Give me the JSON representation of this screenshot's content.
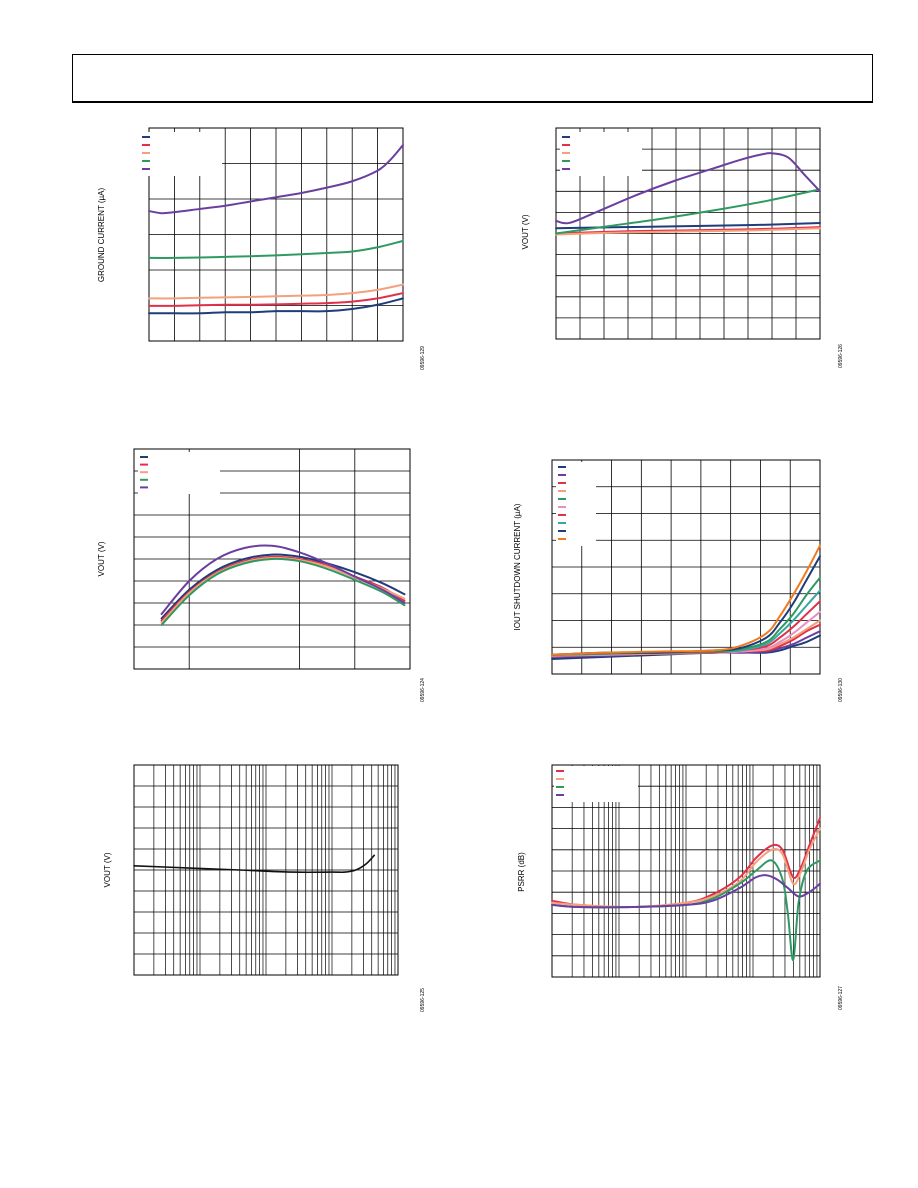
{
  "page": {
    "header_text": ""
  },
  "figures": [
    {
      "id": "fig1",
      "ylabel": "GROUND CURRENT (µA)",
      "code": "09596-129"
    },
    {
      "id": "fig2",
      "ylabel": "VOUT (V)",
      "code": "09596-126"
    },
    {
      "id": "fig3",
      "ylabel": "VOUT (V)",
      "code": "09596-124"
    },
    {
      "id": "fig4",
      "ylabel": "IOUT SHUTDOWN CURRENT (µA)",
      "code": "09596-130"
    },
    {
      "id": "fig5",
      "ylabel": "VOUT (V)",
      "code": "09596-125"
    },
    {
      "id": "fig6",
      "ylabel": "PSRR (dB)",
      "code": "09596-127"
    }
  ],
  "colors": {
    "navy": "#1f3d7a",
    "red": "#e0304a",
    "salmon": "#f4a07c",
    "green": "#2e9a62",
    "purple": "#6b3fa0",
    "orange": "#f07a20",
    "pink": "#e88fc0",
    "teal": "#3aa6a0",
    "black": "#111111",
    "grid": "#000000"
  },
  "chart_data": [
    {
      "id": "fig1",
      "type": "line",
      "ylabel": "GROUND CURRENT (µA)",
      "xlim": [
        0,
        1
      ],
      "ylim": [
        0,
        1
      ],
      "series": [
        {
          "color": "#1f3d7a",
          "x": [
            0,
            0.1,
            0.2,
            0.3,
            0.4,
            0.5,
            0.6,
            0.7,
            0.8,
            0.9,
            1.0
          ],
          "y": [
            0.13,
            0.13,
            0.13,
            0.135,
            0.135,
            0.14,
            0.14,
            0.14,
            0.15,
            0.17,
            0.2
          ]
        },
        {
          "color": "#e0304a",
          "x": [
            0,
            0.1,
            0.2,
            0.3,
            0.4,
            0.5,
            0.6,
            0.7,
            0.8,
            0.9,
            1.0
          ],
          "y": [
            0.165,
            0.165,
            0.168,
            0.17,
            0.17,
            0.172,
            0.175,
            0.178,
            0.185,
            0.2,
            0.225
          ]
        },
        {
          "color": "#f4a07c",
          "x": [
            0,
            0.1,
            0.2,
            0.3,
            0.4,
            0.5,
            0.6,
            0.7,
            0.8,
            0.9,
            1.0
          ],
          "y": [
            0.2,
            0.2,
            0.203,
            0.205,
            0.207,
            0.21,
            0.213,
            0.216,
            0.225,
            0.24,
            0.265
          ]
        },
        {
          "color": "#2e9a62",
          "x": [
            0,
            0.1,
            0.2,
            0.3,
            0.4,
            0.5,
            0.6,
            0.7,
            0.8,
            0.9,
            1.0
          ],
          "y": [
            0.39,
            0.39,
            0.392,
            0.395,
            0.398,
            0.402,
            0.407,
            0.413,
            0.42,
            0.44,
            0.47
          ]
        },
        {
          "color": "#6b3fa0",
          "x": [
            0,
            0.05,
            0.1,
            0.2,
            0.3,
            0.4,
            0.5,
            0.6,
            0.7,
            0.8,
            0.9,
            0.95,
            1.0
          ],
          "y": [
            0.61,
            0.6,
            0.605,
            0.62,
            0.635,
            0.655,
            0.675,
            0.695,
            0.72,
            0.75,
            0.8,
            0.85,
            0.92
          ]
        }
      ]
    },
    {
      "id": "fig2",
      "type": "line",
      "ylabel": "VOUT (V)",
      "xlim": [
        0,
        1
      ],
      "ylim": [
        0,
        1
      ],
      "series": [
        {
          "color": "#1f3d7a",
          "x": [
            0,
            0.25,
            0.5,
            0.75,
            1.0
          ],
          "y": [
            0.525,
            0.53,
            0.535,
            0.54,
            0.55
          ]
        },
        {
          "color": "#e0304a",
          "x": [
            0,
            0.25,
            0.5,
            0.75,
            1.0
          ],
          "y": [
            0.5,
            0.51,
            0.515,
            0.52,
            0.53
          ]
        },
        {
          "color": "#f4a07c",
          "x": [
            0,
            0.25,
            0.5,
            0.75,
            1.0
          ],
          "y": [
            0.495,
            0.505,
            0.51,
            0.515,
            0.525
          ]
        },
        {
          "color": "#2e9a62",
          "x": [
            0,
            0.2,
            0.4,
            0.6,
            0.8,
            1.0
          ],
          "y": [
            0.5,
            0.535,
            0.57,
            0.61,
            0.655,
            0.71
          ]
        },
        {
          "color": "#6b3fa0",
          "x": [
            0,
            0.05,
            0.15,
            0.3,
            0.45,
            0.6,
            0.7,
            0.78,
            0.82,
            0.88,
            0.94,
            1.0
          ],
          "y": [
            0.56,
            0.55,
            0.6,
            0.68,
            0.75,
            0.81,
            0.85,
            0.875,
            0.88,
            0.86,
            0.78,
            0.7
          ]
        }
      ]
    },
    {
      "id": "fig3",
      "type": "line",
      "ylabel": "VOUT (V)",
      "xlim": [
        0,
        1
      ],
      "ylim": [
        0,
        1
      ],
      "series": [
        {
          "color": "#1f3d7a",
          "x": [
            0.1,
            0.2,
            0.3,
            0.4,
            0.5,
            0.6,
            0.7,
            0.8,
            0.9,
            0.98
          ],
          "y": [
            0.23,
            0.36,
            0.45,
            0.5,
            0.52,
            0.51,
            0.48,
            0.44,
            0.39,
            0.34
          ]
        },
        {
          "color": "#e0304a",
          "x": [
            0.1,
            0.2,
            0.3,
            0.4,
            0.5,
            0.6,
            0.7,
            0.8,
            0.9,
            0.98
          ],
          "y": [
            0.22,
            0.35,
            0.44,
            0.49,
            0.51,
            0.5,
            0.47,
            0.42,
            0.37,
            0.31
          ]
        },
        {
          "color": "#f4a07c",
          "x": [
            0.1,
            0.2,
            0.3,
            0.4,
            0.5,
            0.6,
            0.7,
            0.8,
            0.9,
            0.98
          ],
          "y": [
            0.21,
            0.345,
            0.435,
            0.485,
            0.505,
            0.495,
            0.465,
            0.415,
            0.365,
            0.32
          ]
        },
        {
          "color": "#2e9a62",
          "x": [
            0.1,
            0.2,
            0.3,
            0.4,
            0.5,
            0.6,
            0.7,
            0.8,
            0.9,
            0.98
          ],
          "y": [
            0.2,
            0.335,
            0.43,
            0.48,
            0.5,
            0.49,
            0.455,
            0.405,
            0.35,
            0.29
          ]
        },
        {
          "color": "#6b3fa0",
          "x": [
            0.1,
            0.2,
            0.3,
            0.4,
            0.5,
            0.6,
            0.7,
            0.8,
            0.9,
            0.98
          ],
          "y": [
            0.25,
            0.4,
            0.5,
            0.55,
            0.56,
            0.53,
            0.48,
            0.42,
            0.36,
            0.3
          ]
        }
      ]
    },
    {
      "id": "fig4",
      "type": "line",
      "ylabel": "IOUT SHUTDOWN CURRENT (µA)",
      "xlim": [
        0,
        1
      ],
      "ylim": [
        0,
        1
      ],
      "series": [
        {
          "color": "#1f3d7a",
          "x": [
            0,
            0.2,
            0.4,
            0.6,
            0.7,
            0.8,
            0.85,
            0.9,
            0.95,
            1.0
          ],
          "y": [
            0.07,
            0.08,
            0.09,
            0.1,
            0.1,
            0.1,
            0.11,
            0.13,
            0.15,
            0.18
          ]
        },
        {
          "color": "#6b3fa0",
          "x": [
            0,
            0.2,
            0.4,
            0.6,
            0.7,
            0.8,
            0.85,
            0.9,
            0.95,
            1.0
          ],
          "y": [
            0.08,
            0.085,
            0.095,
            0.1,
            0.1,
            0.105,
            0.12,
            0.14,
            0.17,
            0.2
          ]
        },
        {
          "color": "#e0304a",
          "x": [
            0,
            0.2,
            0.4,
            0.6,
            0.7,
            0.8,
            0.85,
            0.9,
            0.95,
            1.0
          ],
          "y": [
            0.085,
            0.09,
            0.095,
            0.1,
            0.105,
            0.11,
            0.13,
            0.16,
            0.2,
            0.23
          ]
        },
        {
          "color": "#f4a07c",
          "x": [
            0,
            0.2,
            0.4,
            0.6,
            0.7,
            0.8,
            0.85,
            0.9,
            0.95,
            1.0
          ],
          "y": [
            0.085,
            0.09,
            0.095,
            0.1,
            0.105,
            0.115,
            0.14,
            0.17,
            0.21,
            0.25
          ]
        },
        {
          "color": "#e88fc0",
          "x": [
            0,
            0.2,
            0.4,
            0.6,
            0.7,
            0.8,
            0.85,
            0.9,
            0.95,
            1.0
          ],
          "y": [
            0.09,
            0.09,
            0.1,
            0.1,
            0.105,
            0.12,
            0.15,
            0.19,
            0.24,
            0.29
          ]
        },
        {
          "color": "#e0304a",
          "x": [
            0,
            0.2,
            0.4,
            0.6,
            0.7,
            0.8,
            0.85,
            0.9,
            0.95,
            1.0
          ],
          "y": [
            0.09,
            0.095,
            0.1,
            0.1,
            0.11,
            0.13,
            0.17,
            0.22,
            0.28,
            0.34
          ]
        },
        {
          "color": "#3aa6a0",
          "x": [
            0,
            0.2,
            0.4,
            0.6,
            0.7,
            0.8,
            0.85,
            0.9,
            0.95,
            1.0
          ],
          "y": [
            0.09,
            0.095,
            0.1,
            0.105,
            0.11,
            0.14,
            0.19,
            0.25,
            0.32,
            0.39
          ]
        },
        {
          "color": "#2e9a62",
          "x": [
            0,
            0.2,
            0.4,
            0.6,
            0.7,
            0.8,
            0.85,
            0.9,
            0.95,
            1.0
          ],
          "y": [
            0.09,
            0.095,
            0.1,
            0.105,
            0.115,
            0.15,
            0.21,
            0.28,
            0.37,
            0.45
          ]
        },
        {
          "color": "#1f3d7a",
          "x": [
            0,
            0.2,
            0.4,
            0.6,
            0.7,
            0.8,
            0.85,
            0.9,
            0.95,
            1.0
          ],
          "y": [
            0.09,
            0.1,
            0.1,
            0.11,
            0.12,
            0.17,
            0.24,
            0.33,
            0.44,
            0.55
          ]
        },
        {
          "color": "#f07a20",
          "x": [
            0,
            0.2,
            0.4,
            0.6,
            0.7,
            0.8,
            0.85,
            0.9,
            0.95,
            1.0
          ],
          "y": [
            0.09,
            0.1,
            0.105,
            0.11,
            0.13,
            0.19,
            0.27,
            0.37,
            0.48,
            0.6
          ]
        }
      ]
    },
    {
      "id": "fig5",
      "type": "line",
      "ylabel": "VOUT (V)",
      "xlim": [
        0,
        1
      ],
      "ylim": [
        0,
        1
      ],
      "series": [
        {
          "color": "#111111",
          "x": [
            0,
            0.2,
            0.4,
            0.6,
            0.75,
            0.8,
            0.84,
            0.88,
            0.91
          ],
          "y": [
            0.52,
            0.51,
            0.5,
            0.49,
            0.49,
            0.49,
            0.5,
            0.53,
            0.57
          ]
        }
      ]
    },
    {
      "id": "fig6",
      "type": "line",
      "ylabel": "PSRR (dB)",
      "xlim": [
        0,
        1
      ],
      "ylim": [
        0,
        1
      ],
      "series": [
        {
          "color": "#e0304a",
          "x": [
            0,
            0.1,
            0.3,
            0.5,
            0.6,
            0.7,
            0.76,
            0.82,
            0.86,
            0.9,
            0.93,
            0.96,
            1.0
          ],
          "y": [
            0.36,
            0.34,
            0.33,
            0.35,
            0.39,
            0.47,
            0.56,
            0.62,
            0.6,
            0.47,
            0.52,
            0.62,
            0.75
          ]
        },
        {
          "color": "#f4a07c",
          "x": [
            0,
            0.1,
            0.3,
            0.5,
            0.6,
            0.7,
            0.76,
            0.82,
            0.86,
            0.9,
            0.93,
            0.96,
            1.0
          ],
          "y": [
            0.35,
            0.34,
            0.33,
            0.35,
            0.38,
            0.45,
            0.54,
            0.6,
            0.58,
            0.44,
            0.5,
            0.6,
            0.7
          ]
        },
        {
          "color": "#2e9a62",
          "x": [
            0,
            0.1,
            0.3,
            0.5,
            0.6,
            0.7,
            0.76,
            0.82,
            0.86,
            0.88,
            0.9,
            0.92,
            0.95,
            1.0
          ],
          "y": [
            0.34,
            0.33,
            0.33,
            0.34,
            0.37,
            0.44,
            0.5,
            0.55,
            0.46,
            0.3,
            0.08,
            0.35,
            0.5,
            0.55
          ]
        },
        {
          "color": "#6b3fa0",
          "x": [
            0,
            0.1,
            0.3,
            0.5,
            0.6,
            0.7,
            0.76,
            0.8,
            0.84,
            0.88,
            0.92,
            0.96,
            1.0
          ],
          "y": [
            0.34,
            0.33,
            0.33,
            0.34,
            0.36,
            0.42,
            0.47,
            0.48,
            0.46,
            0.42,
            0.38,
            0.4,
            0.44
          ]
        }
      ]
    }
  ]
}
